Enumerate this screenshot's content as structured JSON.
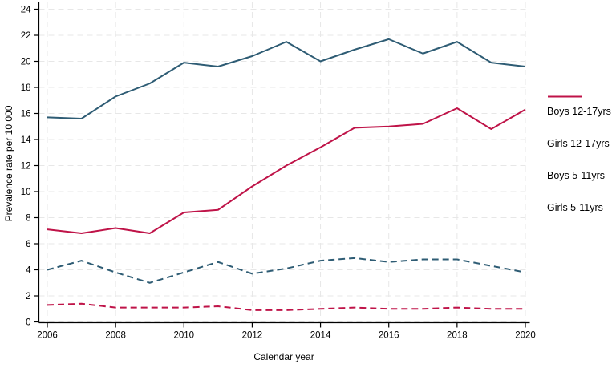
{
  "chart_data": {
    "type": "line",
    "title": "",
    "xlabel": "Calendar year",
    "ylabel": "Prevalence rate per 10 000",
    "x": [
      2006,
      2007,
      2008,
      2009,
      2010,
      2011,
      2012,
      2013,
      2014,
      2015,
      2016,
      2017,
      2018,
      2019,
      2020
    ],
    "xticks": [
      2006,
      2008,
      2010,
      2012,
      2014,
      2016,
      2018,
      2020
    ],
    "xtick_labels": [
      "2006",
      "2008",
      "2010",
      "2012",
      "2014",
      "2016",
      "2018",
      "2020"
    ],
    "ylim": [
      0,
      24
    ],
    "ytick_step": 2,
    "ytick_labels": [
      "0",
      "2",
      "4",
      "6",
      "8",
      "10",
      "12",
      "14",
      "16",
      "18",
      "20",
      "22",
      "24"
    ],
    "grid": true,
    "legend_position": "right",
    "series": [
      {
        "name": "Boys 12-17yrs",
        "color": "#2e5c74",
        "dash": "solid",
        "values": [
          15.7,
          15.6,
          17.3,
          18.3,
          19.9,
          19.6,
          20.4,
          21.5,
          20.0,
          20.9,
          21.7,
          20.6,
          21.5,
          19.9,
          19.6
        ]
      },
      {
        "name": "Girls 12-17yrs",
        "color": "#bf1348",
        "dash": "solid",
        "values": [
          7.1,
          6.8,
          7.2,
          6.8,
          8.4,
          8.6,
          10.4,
          12.0,
          13.4,
          14.9,
          15.0,
          15.2,
          16.4,
          14.8,
          16.3
        ]
      },
      {
        "name": "Boys 5-11yrs",
        "color": "#2e5c74",
        "dash": "dashed",
        "values": [
          4.0,
          4.7,
          3.8,
          3.0,
          3.8,
          4.6,
          3.7,
          4.1,
          4.7,
          4.9,
          4.6,
          4.8,
          4.8,
          4.3,
          3.8
        ]
      },
      {
        "name": "Girls 5-11yrs",
        "color": "#bf1348",
        "dash": "dashed",
        "values": [
          1.3,
          1.4,
          1.1,
          1.1,
          1.1,
          1.2,
          0.9,
          0.9,
          1.0,
          1.1,
          1.0,
          1.0,
          1.1,
          1.0,
          1.0
        ]
      }
    ],
    "axis_color": "#000000",
    "grid_color": "#e7e7e7"
  }
}
